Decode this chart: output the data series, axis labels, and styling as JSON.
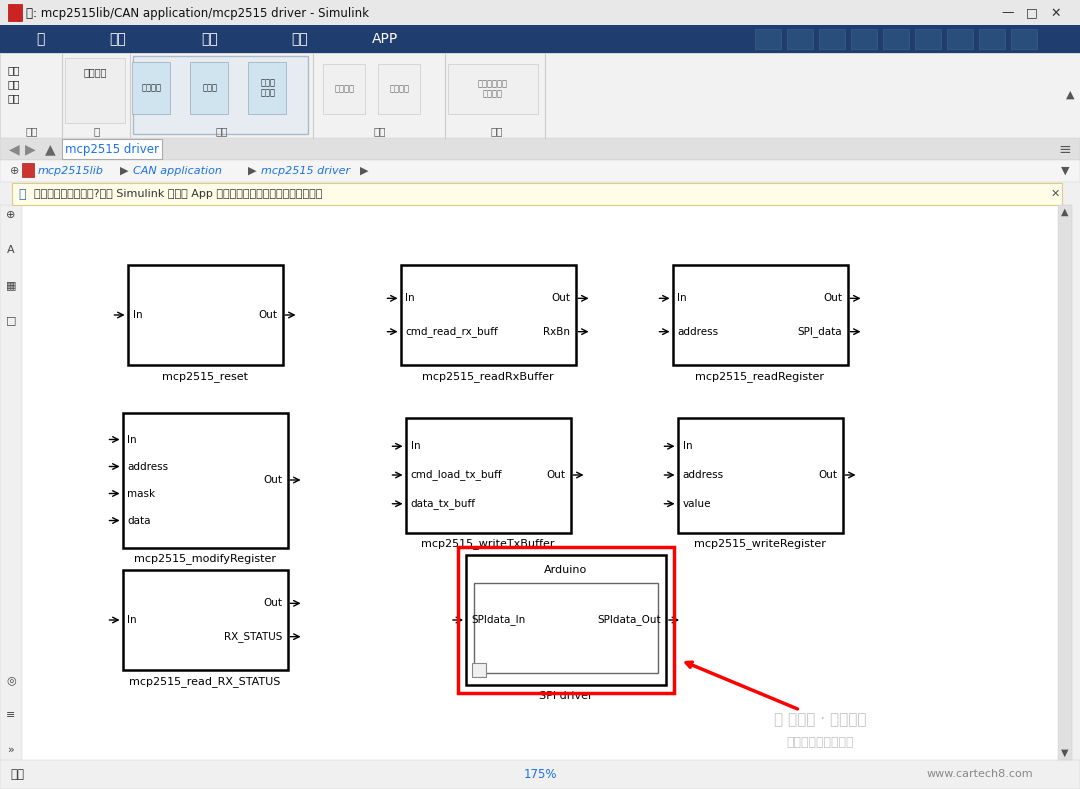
{
  "title": "库: mcp2515lib/CAN application/mcp2515 driver - Simulink",
  "bg_color": "#f0f0f0",
  "canvas_color": "#ffffff",
  "toolbar_color": "#1a3a5c",
  "menu_items": [
    "库",
    "调试",
    "建模",
    "格式",
    "APP"
  ],
  "tab_text": "mcp2515 driver",
  "status_text": "就绪",
  "zoom_text": "175%",
  "url_text": "www.cartech8.com"
}
